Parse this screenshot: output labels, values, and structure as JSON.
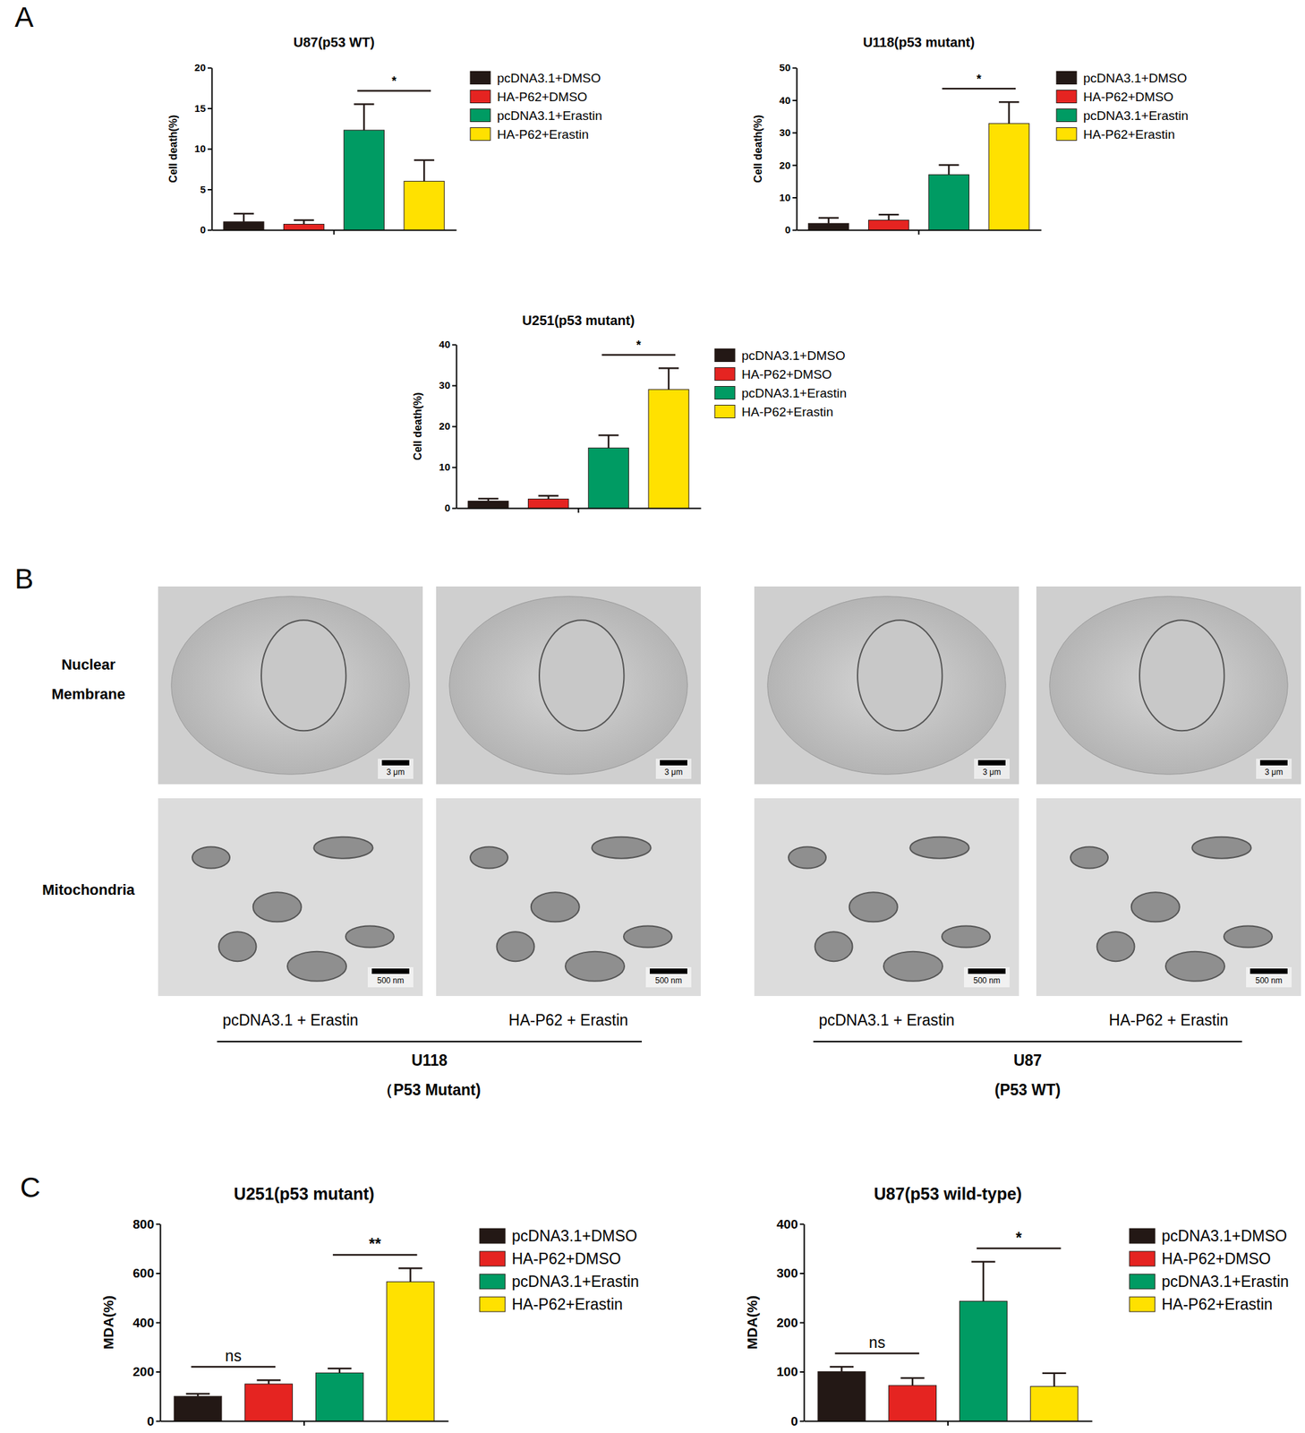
{
  "panel_labels": [
    "A",
    "B",
    "C"
  ],
  "chart_data": [
    {
      "type": "bar",
      "title": "U87(p53 WT)",
      "y_label": "Cell death(%)",
      "categories": [
        null
      ],
      "ylim": [
        0,
        20
      ],
      "yticks": [
        0,
        5,
        10,
        15,
        20
      ],
      "series": [
        {
          "name": "pcDNA3.1+DMSO",
          "color": "#231815",
          "values": [
            1.0
          ],
          "errors": [
            1.0
          ]
        },
        {
          "name": "HA-P62+DMSO",
          "color": "#e52421",
          "values": [
            0.7
          ],
          "errors": [
            0.5
          ]
        },
        {
          "name": "pcDNA3.1+Erastin",
          "color": "#009b63",
          "values": [
            12.3
          ],
          "errors": [
            3.2
          ]
        },
        {
          "name": "HA-P62+Erastin",
          "color": "#ffe100",
          "values": [
            6.0
          ],
          "errors": [
            2.6
          ]
        }
      ],
      "annotations": [
        {
          "text": "*",
          "between": [
            2,
            3
          ]
        }
      ]
    },
    {
      "type": "bar",
      "title": "U118(p53 mutant)",
      "y_label": "Cell death(%)",
      "categories": [
        null
      ],
      "ylim": [
        0,
        50
      ],
      "yticks": [
        0,
        10,
        20,
        30,
        40,
        50
      ],
      "series": [
        {
          "name": "pcDNA3.1+DMSO",
          "color": "#231815",
          "values": [
            2.0
          ],
          "errors": [
            1.7
          ]
        },
        {
          "name": "HA-P62+DMSO",
          "color": "#e52421",
          "values": [
            3.0
          ],
          "errors": [
            1.7
          ]
        },
        {
          "name": "pcDNA3.1+Erastin",
          "color": "#009b63",
          "values": [
            17.0
          ],
          "errors": [
            3.0
          ]
        },
        {
          "name": "HA-P62+Erastin",
          "color": "#ffe100",
          "values": [
            32.8
          ],
          "errors": [
            6.6
          ]
        }
      ],
      "annotations": [
        {
          "text": "*",
          "between": [
            2,
            3
          ]
        }
      ]
    },
    {
      "type": "bar",
      "title": "U251(p53 mutant)",
      "y_label": "Cell death(%)",
      "categories": [
        null
      ],
      "ylim": [
        0,
        40
      ],
      "yticks": [
        0,
        10,
        20,
        30,
        40
      ],
      "series": [
        {
          "name": "pcDNA3.1+DMSO",
          "color": "#231815",
          "values": [
            1.7
          ],
          "errors": [
            0.6
          ]
        },
        {
          "name": "HA-P62+DMSO",
          "color": "#e52421",
          "values": [
            2.2
          ],
          "errors": [
            0.8
          ]
        },
        {
          "name": "pcDNA3.1+Erastin",
          "color": "#009b63",
          "values": [
            14.7
          ],
          "errors": [
            3.1
          ]
        },
        {
          "name": "HA-P62+Erastin",
          "color": "#ffe100",
          "values": [
            29.0
          ],
          "errors": [
            5.2
          ]
        }
      ],
      "annotations": [
        {
          "text": "*",
          "between": [
            2,
            3
          ]
        }
      ]
    },
    {
      "type": "bar",
      "title": "U251(p53 mutant)",
      "y_label": "MDA(%)",
      "categories": [
        null
      ],
      "ylim": [
        0,
        800
      ],
      "yticks": [
        0,
        200,
        400,
        600,
        800
      ],
      "series": [
        {
          "name": "pcDNA3.1+DMSO",
          "color": "#231815",
          "values": [
            100
          ],
          "errors": [
            10
          ]
        },
        {
          "name": "HA-P62+DMSO",
          "color": "#e52421",
          "values": [
            150
          ],
          "errors": [
            15
          ]
        },
        {
          "name": "pcDNA3.1+Erastin",
          "color": "#009b63",
          "values": [
            195
          ],
          "errors": [
            18
          ]
        },
        {
          "name": "HA-P62+Erastin",
          "color": "#ffe100",
          "values": [
            565
          ],
          "errors": [
            55
          ]
        }
      ],
      "annotations": [
        {
          "text": "ns",
          "between": [
            0,
            1
          ]
        },
        {
          "text": "**",
          "between": [
            2,
            3
          ]
        }
      ]
    },
    {
      "type": "bar",
      "title": "U87(p53 wild-type)",
      "y_label": "MDA(%)",
      "categories": [
        null
      ],
      "ylim": [
        0,
        400
      ],
      "yticks": [
        0,
        100,
        200,
        300,
        400
      ],
      "series": [
        {
          "name": "pcDNA3.1+DMSO",
          "color": "#231815",
          "values": [
            100
          ],
          "errors": [
            10
          ]
        },
        {
          "name": "HA-P62+DMSO",
          "color": "#e52421",
          "values": [
            72
          ],
          "errors": [
            15
          ]
        },
        {
          "name": "pcDNA3.1+Erastin",
          "color": "#009b63",
          "values": [
            243
          ],
          "errors": [
            80
          ]
        },
        {
          "name": "HA-P62+Erastin",
          "color": "#ffe100",
          "values": [
            70
          ],
          "errors": [
            27
          ]
        }
      ],
      "annotations": [
        {
          "text": "ns",
          "between": [
            0,
            1
          ]
        },
        {
          "text": "*",
          "between": [
            2,
            3
          ]
        }
      ]
    }
  ],
  "tem": {
    "row_labels": [
      "Nuclear Membrane",
      "Mitochondria"
    ],
    "scale_bars": [
      "3 μm",
      "500 nm"
    ],
    "conditions": [
      "pcDNA3.1 + Erastin",
      "HA-P62 + Erastin"
    ],
    "groups": [
      {
        "name": "U118",
        "note": "（P53 Mutant)"
      },
      {
        "name": "U87",
        "note": "(P53 WT)"
      }
    ]
  }
}
